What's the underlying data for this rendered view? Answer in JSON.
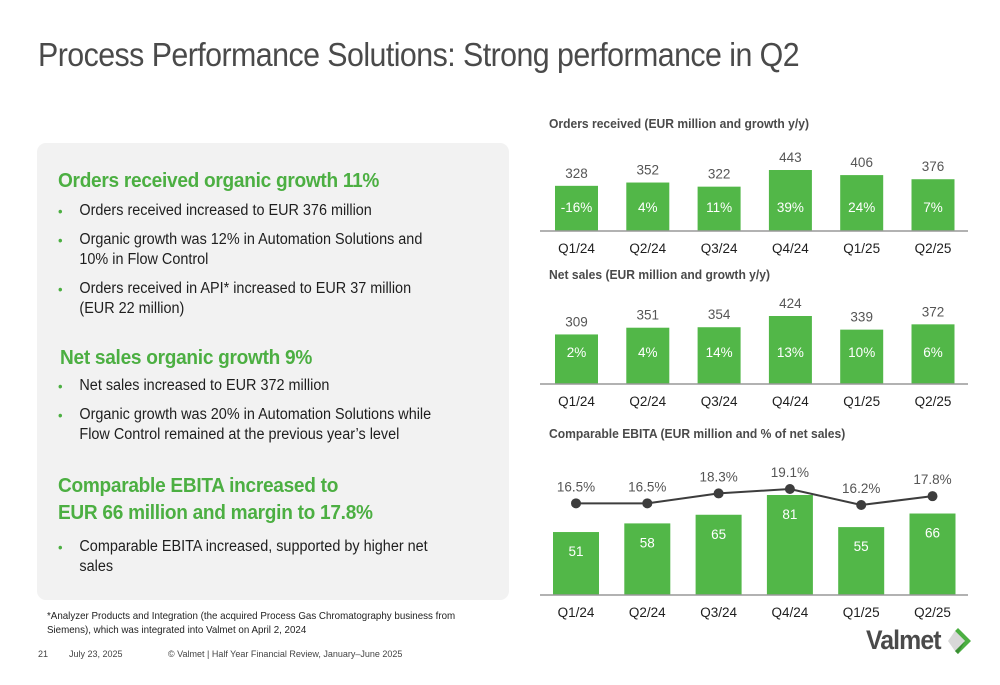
{
  "title": "Process Performance Solutions: Strong performance in Q2",
  "panel": {
    "sections": [
      {
        "heading_lines": [
          "Orders received organic growth 11%"
        ],
        "bullets": [
          "Orders received increased to EUR 376 million",
          "Organic growth was 12% in Automation Solutions and 10% in Flow Control",
          "Orders received in API* increased to EUR 37 million (EUR 22 million)"
        ]
      },
      {
        "heading_lines": [
          "Net sales organic growth 9%"
        ],
        "bullets": [
          "Net sales increased to EUR 372 million",
          "Organic growth was 20% in Automation Solutions while Flow Control remained at the previous year’s level"
        ]
      },
      {
        "heading_lines": [
          "Comparable EBITA increased to",
          "EUR 66 million and margin to 17.8%"
        ],
        "bullets": [
          "Comparable EBITA increased, supported by higher net sales"
        ]
      }
    ],
    "bullet_glyph": "•"
  },
  "footnote": "*Analyzer Products and Integration (the acquired Process Gas Chromatography business from Siemens), which was integrated into Valmet on April 2, 2024",
  "footer": {
    "page_number": "21",
    "date": "July 23, 2025",
    "copyright": "© Valmet   | Half Year Financial Review, January–June 2025"
  },
  "logo": {
    "text": "Valmet",
    "icon": "valmet-diamond-icon"
  },
  "colors": {
    "accent_green": "#4caf42",
    "bar_green": "#52b748",
    "line_dark": "#3d3d3d",
    "title_gray": "#4a4a4a",
    "panel_bg": "#f2f2f2"
  },
  "chart_data": [
    {
      "type": "bar",
      "title": "Orders received (EUR million and growth y/y)",
      "categories": [
        "Q1/24",
        "Q2/24",
        "Q3/24",
        "Q4/24",
        "Q1/25",
        "Q2/25"
      ],
      "values": [
        328,
        352,
        322,
        443,
        406,
        376
      ],
      "value_labels": [
        "328",
        "352",
        "322",
        "443",
        "406",
        "376"
      ],
      "inner_labels": [
        "-16%",
        "4%",
        "11%",
        "39%",
        "24%",
        "7%"
      ],
      "xlabel": "",
      "ylabel": "",
      "ylim": [
        0,
        443
      ],
      "grid": false,
      "legend": "none"
    },
    {
      "type": "bar",
      "title": "Net sales (EUR million and growth y/y)",
      "categories": [
        "Q1/24",
        "Q2/24",
        "Q3/24",
        "Q4/24",
        "Q1/25",
        "Q2/25"
      ],
      "values": [
        309,
        351,
        354,
        424,
        339,
        372
      ],
      "value_labels": [
        "309",
        "351",
        "354",
        "424",
        "339",
        "372"
      ],
      "inner_labels": [
        "2%",
        "4%",
        "14%",
        "13%",
        "10%",
        "6%"
      ],
      "xlabel": "",
      "ylabel": "",
      "ylim": [
        0,
        424
      ],
      "grid": false,
      "legend": "none"
    },
    {
      "type": "bar",
      "title": "Comparable EBITA (EUR million and % of net sales)",
      "categories": [
        "Q1/24",
        "Q2/24",
        "Q3/24",
        "Q4/24",
        "Q1/25",
        "Q2/25"
      ],
      "series": [
        {
          "name": "Comparable EBITA (EUR million)",
          "type": "bar",
          "values": [
            51,
            58,
            65,
            81,
            55,
            66
          ],
          "labels": [
            "51",
            "58",
            "65",
            "81",
            "55",
            "66"
          ]
        },
        {
          "name": "Comparable EBITA margin (%)",
          "type": "line",
          "values": [
            16.5,
            16.5,
            18.3,
            19.1,
            16.2,
            17.8
          ],
          "labels": [
            "16.5%",
            "16.5%",
            "18.3%",
            "19.1%",
            "16.2%",
            "17.8%"
          ]
        }
      ],
      "xlabel": "",
      "ylabel": "",
      "grid": false,
      "legend": "none"
    }
  ]
}
